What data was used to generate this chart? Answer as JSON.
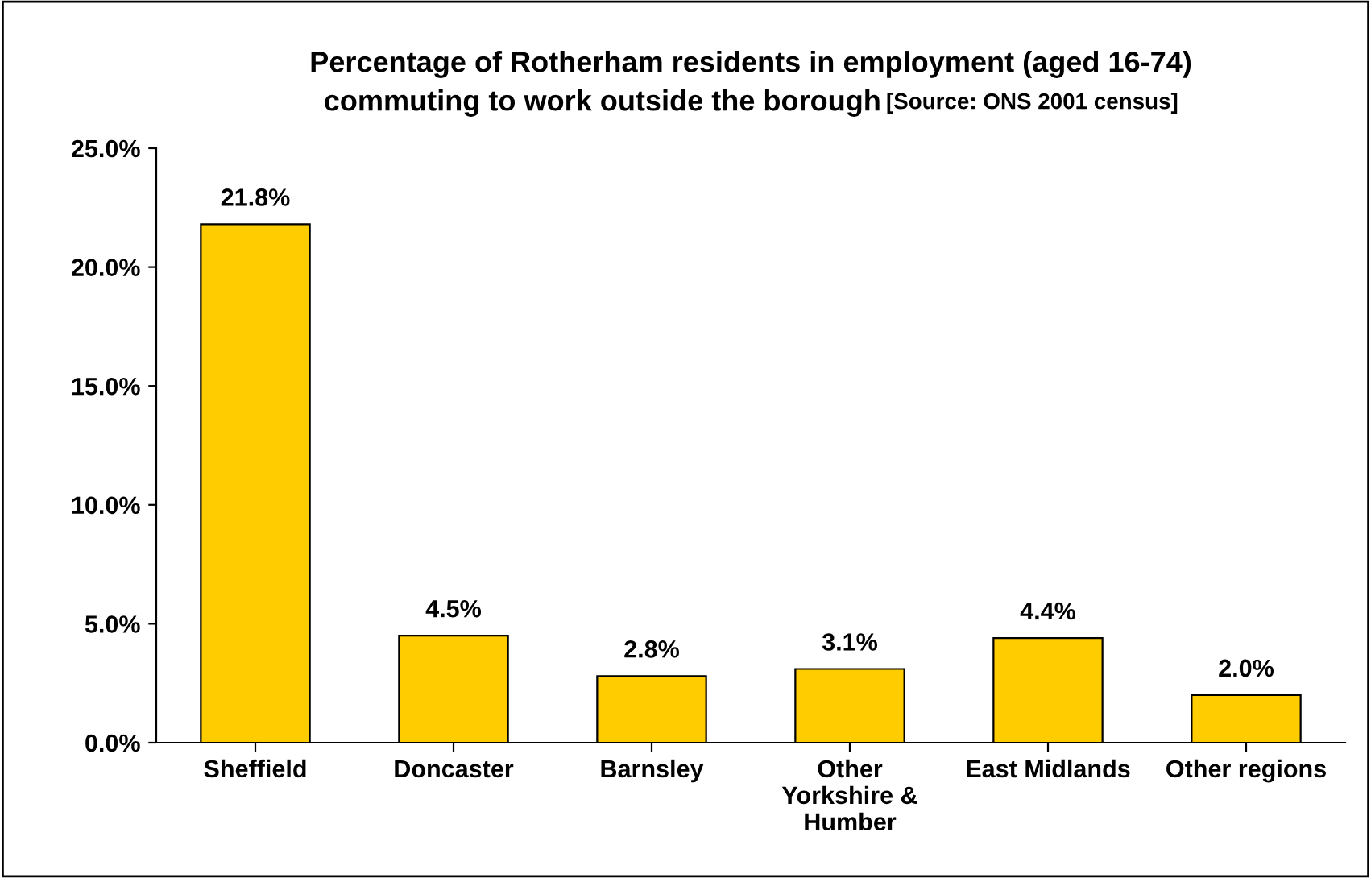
{
  "chart_data": {
    "type": "bar",
    "title": "Percentage of Rotherham residents in employment (aged 16-74)\ncommuting to work outside the borough",
    "annotations": [
      "[Source: ONS 2001 census]"
    ],
    "categories": [
      "Sheffield",
      "Doncaster",
      "Barnsley",
      "Other\nYorkshire &\nHumber",
      "East Midlands",
      "Other regions"
    ],
    "values": [
      21.8,
      4.5,
      2.8,
      3.1,
      4.4,
      2.0
    ],
    "value_labels": [
      "21.8%",
      "4.5%",
      "2.8%",
      "3.1%",
      "4.4%",
      "2.0%"
    ],
    "color": "#ffcc00",
    "ylim": [
      0,
      25
    ],
    "yticks": [
      {
        "value": 0,
        "label": "0.0%"
      },
      {
        "value": 5,
        "label": "5.0%"
      },
      {
        "value": 10,
        "label": "10.0%"
      },
      {
        "value": 15,
        "label": "15.0%"
      },
      {
        "value": 20,
        "label": "20.0%"
      },
      {
        "value": 25,
        "label": "25.0%"
      }
    ],
    "grid": false,
    "legend": false
  }
}
